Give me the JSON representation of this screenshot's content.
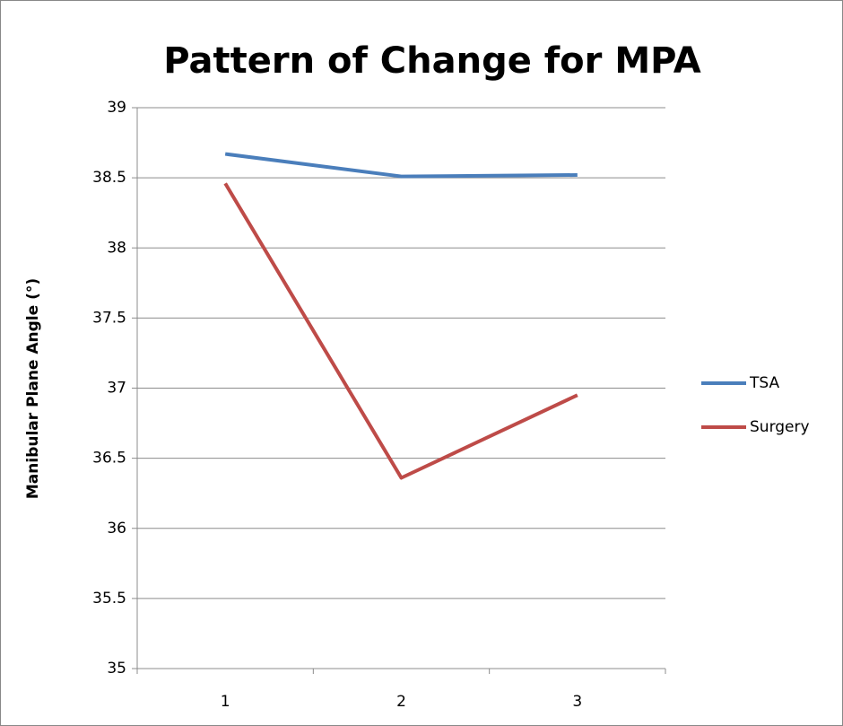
{
  "chart_data": {
    "type": "line",
    "title": "Pattern of Change for MPA",
    "y_label": "Manibular Plane Angle (°)",
    "categories": [
      "1",
      "2",
      "3"
    ],
    "series": [
      {
        "name": "TSA",
        "color": "#4a7ebb",
        "values": [
          38.67,
          38.51,
          38.52
        ]
      },
      {
        "name": "Surgery",
        "color": "#be4b48",
        "values": [
          38.46,
          36.36,
          36.95
        ]
      }
    ],
    "ylim": [
      35,
      39
    ],
    "yticks": [
      35,
      35.5,
      36,
      36.5,
      37,
      37.5,
      38,
      38.5,
      39
    ],
    "grid": true,
    "legend": "right"
  }
}
